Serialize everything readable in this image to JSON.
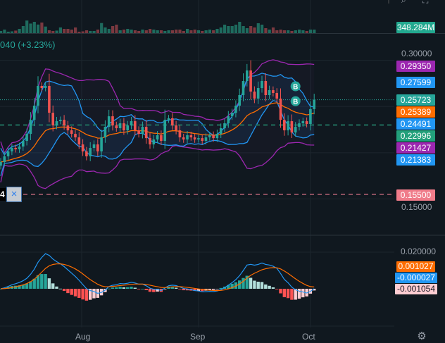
{
  "legend": {
    "change_text": "040 (+3.23%)"
  },
  "volume_label": "348.284M",
  "price_labels": [
    {
      "text": "0.29350",
      "color": "#9c27b0",
      "value": 0.2935,
      "series": "outer-band-upper"
    },
    {
      "text": "0.27599",
      "color": "#2196f3",
      "value": 0.27599,
      "series": "inner-band-upper"
    },
    {
      "text": "0.25723",
      "color": "#26a69a",
      "value": 0.25723,
      "series": "last-price"
    },
    {
      "text": "0.25389",
      "color": "#ff6d00",
      "value": 0.25389,
      "series": "moving-average"
    },
    {
      "text": "0.24491",
      "color": "#2196f3",
      "value": 0.24491,
      "series": "inner-band-basis"
    },
    {
      "text": "0.22996",
      "color": "#22a07b",
      "value": 0.22996,
      "series": "price-line"
    },
    {
      "text": "0.21427",
      "color": "#9c27b0",
      "value": 0.21427,
      "series": "outer-band-lower"
    },
    {
      "text": "0.21383",
      "color": "#2196f3",
      "value": 0.21383,
      "series": "inner-band-lower"
    },
    {
      "text": "0.15500",
      "color": "#f07c8a",
      "value": 0.155,
      "series": "alert-line"
    }
  ],
  "price_axis_ticks": [
    "0.30000",
    "0.15000"
  ],
  "macd_axis_ticks": [
    "0.020000"
  ],
  "macd_labels": [
    {
      "text": "0.001027",
      "bg": "#ff6d00",
      "fg": "#ffffff",
      "series": "signal"
    },
    {
      "text": "-0.000027",
      "bg": "#2196f3",
      "fg": "#ffffff",
      "series": "macd"
    },
    {
      "text": "-0.001054",
      "bg": "#ffcdd2",
      "fg": "#131722",
      "series": "histogram"
    }
  ],
  "left_tag": "4",
  "close_button": "×",
  "settings_icon": "gear-icon",
  "markers": [
    {
      "text": "B",
      "index": 79,
      "value": 0.2718
    },
    {
      "text": "B",
      "index": 79,
      "value": 0.2557
    }
  ],
  "colors": {
    "up": "#26a69a",
    "down": "#ef5350",
    "vol_up": "#1e6b5e",
    "vol_down": "#7a3940",
    "outer_band": "#9c27b0",
    "inner_band": "#2196f3",
    "ma": "#ff6d00"
  },
  "chart_data": {
    "type": "candlestick",
    "title": "",
    "x_tick_labels": [
      "Aug",
      "Sep",
      "Oct"
    ],
    "x_tick_index": [
      20.5,
      51.5,
      81.5
    ],
    "ylim": [
      0.145,
      0.305
    ],
    "macd_ylim": [
      -0.025,
      0.025
    ],
    "open_rule": "open equals previous close",
    "close": [
      0.19,
      0.1961,
      0.2014,
      0.2052,
      0.2037,
      0.2067,
      0.2128,
      0.2204,
      0.2356,
      0.2509,
      0.2722,
      0.2699,
      0.2722,
      0.2432,
      0.2295,
      0.2341,
      0.2356,
      0.2295,
      0.2242,
      0.2204,
      0.2166,
      0.209,
      0.2014,
      0.1961,
      0.2052,
      0.209,
      0.2014,
      0.2166,
      0.228,
      0.2394,
      0.2295,
      0.2265,
      0.2318,
      0.2242,
      0.2295,
      0.2341,
      0.2242,
      0.2204,
      0.228,
      0.2158,
      0.209,
      0.2143,
      0.2189,
      0.2128,
      0.2356,
      0.2372,
      0.2295,
      0.2242,
      0.2166,
      0.2143,
      0.2189,
      0.2166,
      0.2143,
      0.2158,
      0.2128,
      0.2166,
      0.2189,
      0.2158,
      0.2204,
      0.2265,
      0.2318,
      0.2394,
      0.2432,
      0.2509,
      0.2623,
      0.2775,
      0.2889,
      0.2661,
      0.2585,
      0.2699,
      0.2775,
      0.2623,
      0.2676,
      0.2646,
      0.2585,
      0.2356,
      0.2242,
      0.2341,
      0.2219,
      0.228,
      0.2318,
      0.2341,
      0.2311,
      0.2471,
      0.2572
    ],
    "volume_m": [
      210,
      350,
      140,
      175,
      250,
      420,
      700,
      1250,
      950,
      1120,
      850,
      1050,
      650,
      280,
      210,
      250,
      560,
      420,
      420,
      350,
      560,
      140,
      175,
      280,
      210,
      210,
      350,
      1000,
      560,
      420,
      700,
      840,
      280,
      350,
      420,
      350,
      280,
      210,
      350,
      280,
      420,
      350,
      280,
      280,
      210,
      280,
      280,
      350,
      350,
      210,
      420,
      280,
      350,
      280,
      210,
      280,
      350,
      280,
      420,
      560,
      840,
      700,
      700,
      840,
      1120,
      700,
      490,
      700,
      560,
      980,
      840,
      490,
      350,
      560,
      280,
      350,
      280,
      280,
      210,
      280,
      350,
      280,
      210,
      350,
      348.284
    ],
    "horizontal_lines": [
      {
        "value": 0.25723,
        "style": "dotted",
        "color": "#26a69a"
      },
      {
        "value": 0.22996,
        "style": "dashed",
        "color": "#1f6e5c"
      },
      {
        "value": 0.155,
        "style": "dashed",
        "color": "#8a4f5e"
      }
    ],
    "indicators": [
      "Volume",
      "Bollinger Bands (outer)",
      "Bollinger Bands (inner)",
      "Moving Average",
      "MACD"
    ]
  }
}
